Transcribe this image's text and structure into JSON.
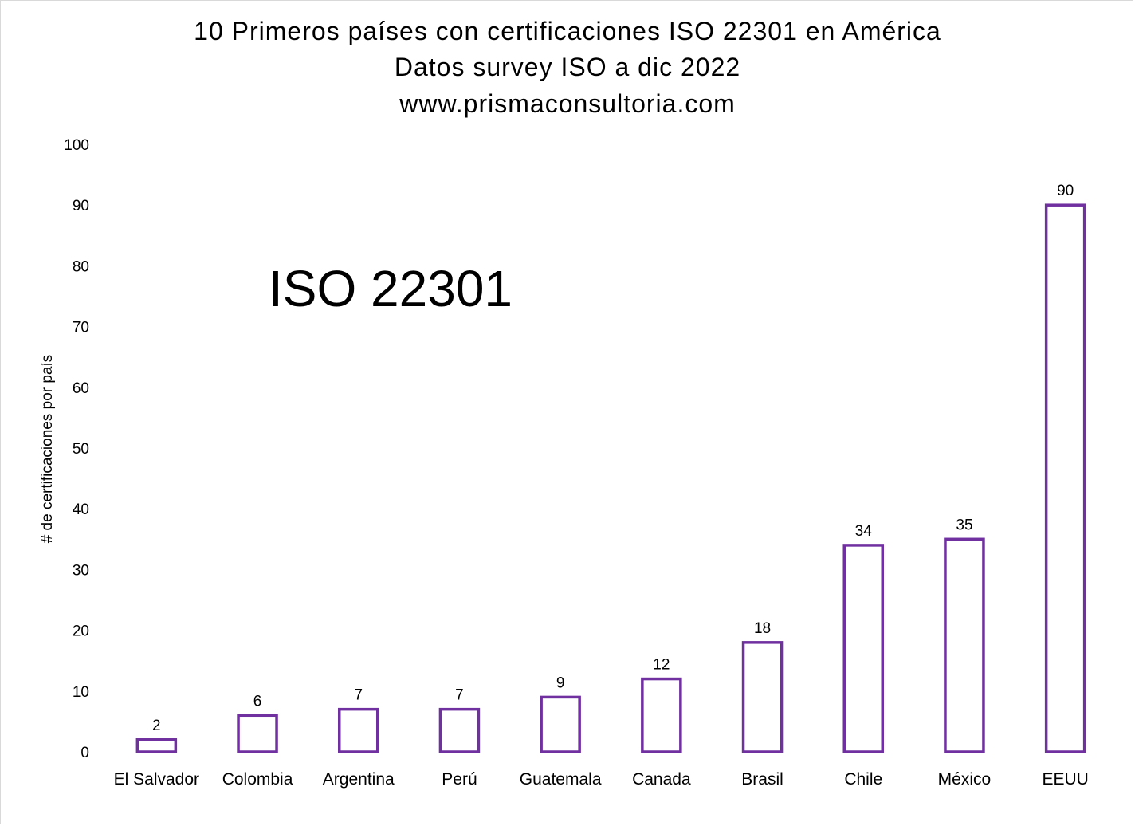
{
  "chart_data": {
    "type": "bar",
    "title": "10 Primeros países con certificaciones ISO 22301 en América",
    "subtitle": "Datos survey ISO a dic 2022",
    "source_url": "www.prismaconsultoria.com",
    "annotation": "ISO 22301",
    "xlabel": "",
    "ylabel": "# de certificaciones por país",
    "categories": [
      "El Salvador",
      "Colombia",
      "Argentina",
      "Perú",
      "Guatemala",
      "Canada",
      "Brasil",
      "Chile",
      "México",
      "EEUU"
    ],
    "values": [
      2,
      6,
      7,
      7,
      9,
      12,
      18,
      34,
      35,
      90
    ],
    "ylim": [
      0,
      100
    ],
    "yticks": [
      0,
      10,
      20,
      30,
      40,
      50,
      60,
      70,
      80,
      90,
      100
    ],
    "grid": false,
    "legend": "none",
    "data_labels": true,
    "colors": {
      "bar_outline": "#7030a0",
      "bar_fill": "#ffffff",
      "text": "#000000"
    }
  }
}
